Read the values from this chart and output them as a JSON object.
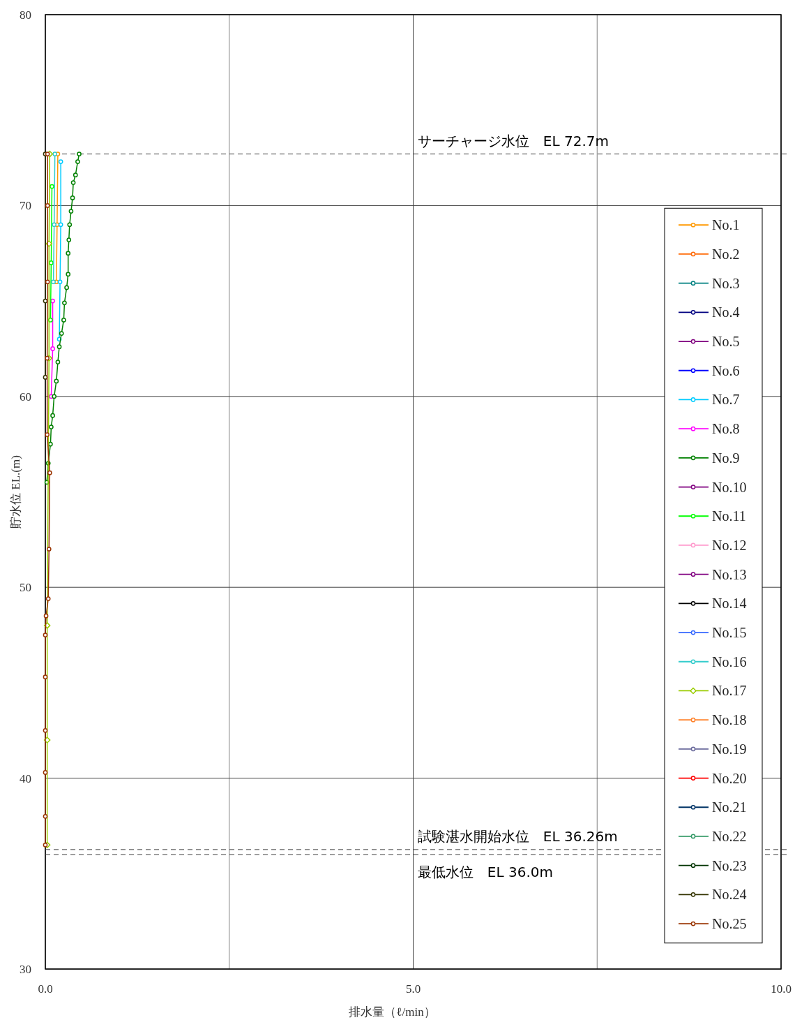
{
  "chart_data": {
    "type": "line",
    "xlabel": "排水量（ℓ/min）",
    "ylabel": "貯水位 EL.(m)",
    "xlim": [
      0,
      10
    ],
    "ylim": [
      30,
      80
    ],
    "xticks": [
      {
        "value": 0,
        "label": "0.0"
      },
      {
        "value": 2.5,
        "label": null
      },
      {
        "value": 5,
        "label": "5.0"
      },
      {
        "value": 7.5,
        "label": null
      },
      {
        "value": 10,
        "label": "10.0"
      }
    ],
    "yticks": [
      30,
      40,
      50,
      60,
      70,
      80
    ],
    "grid": true,
    "legend": "right",
    "marker": "circle",
    "ref_lines": [
      {
        "axis": "y",
        "value": 72.7,
        "label": "サーチャージ水位　EL 72.7m",
        "line_style": "dashed",
        "color": "#404040"
      },
      {
        "axis": "y",
        "value": 36.26,
        "label": "試験湛水開始水位　EL 36.26m",
        "line_style": "dashed",
        "color": "#404040"
      },
      {
        "axis": "y",
        "value": 36.0,
        "label": "最低水位　EL 36.0m",
        "line_style": "dashed",
        "color": "#404040"
      }
    ],
    "series": [
      {
        "name": "No.1",
        "color": "#ff9900",
        "x": [
          0.15,
          0.16,
          0.17
        ],
        "values": [
          66,
          69,
          72.7
        ]
      },
      {
        "name": "No.2",
        "color": "#ff6600",
        "x": [
          null
        ],
        "values": [
          null
        ]
      },
      {
        "name": "No.3",
        "color": "#008080",
        "x": [
          null
        ],
        "values": [
          null
        ]
      },
      {
        "name": "No.4",
        "color": "#000080",
        "x": [
          null
        ],
        "values": [
          null
        ]
      },
      {
        "name": "No.5",
        "color": "#800080",
        "x": [
          null
        ],
        "values": [
          null
        ]
      },
      {
        "name": "No.6",
        "color": "#0000ff",
        "x": [
          null
        ],
        "values": [
          null
        ]
      },
      {
        "name": "No.7",
        "color": "#00ccff",
        "x": [
          0.19,
          0.2,
          0.21,
          0.21
        ],
        "values": [
          63,
          66,
          69,
          72.3
        ]
      },
      {
        "name": "No.8",
        "color": "#ff00ff",
        "x": [
          0.08,
          0.1,
          0.1
        ],
        "values": [
          60,
          62.5,
          65
        ]
      },
      {
        "name": "No.9",
        "color": "#008000",
        "x": [
          0.02,
          0.04,
          0.07,
          0.08,
          0.1,
          0.12,
          0.15,
          0.17,
          0.19,
          0.22,
          0.25,
          0.26,
          0.29,
          0.31,
          0.31,
          0.32,
          0.33,
          0.35,
          0.37,
          0.38,
          0.41,
          0.44,
          0.46
        ],
        "values": [
          55.5,
          56.5,
          57.5,
          58.4,
          59,
          60,
          60.8,
          61.8,
          62.6,
          63.3,
          64,
          64.9,
          65.7,
          66.4,
          67.5,
          68.2,
          69,
          69.7,
          70.4,
          71.2,
          71.6,
          72.3,
          72.7
        ]
      },
      {
        "name": "No.10",
        "color": "#800080",
        "x": [
          null
        ],
        "values": [
          null
        ]
      },
      {
        "name": "No.11",
        "color": "#00ff00",
        "x": [
          0.07,
          0.08,
          0.09
        ],
        "values": [
          64,
          67,
          71
        ]
      },
      {
        "name": "No.12",
        "color": "#ff99cc",
        "x": [
          null
        ],
        "values": [
          null
        ]
      },
      {
        "name": "No.13",
        "color": "#800080",
        "x": [
          null
        ],
        "values": [
          null
        ]
      },
      {
        "name": "No.14",
        "color": "#000000",
        "x": [
          null
        ],
        "values": [
          null
        ]
      },
      {
        "name": "No.15",
        "color": "#3366ff",
        "x": [
          null
        ],
        "values": [
          null
        ]
      },
      {
        "name": "No.16",
        "color": "#33cccc",
        "x": [
          0.11,
          0.12,
          0.13
        ],
        "values": [
          66,
          69,
          72.7
        ]
      },
      {
        "name": "No.17",
        "color": "#99cc00",
        "marker": "diamond",
        "x": [
          0.025,
          0.025,
          0.025,
          0.05,
          0.05,
          0.06
        ],
        "values": [
          36.5,
          42,
          48,
          62,
          68,
          72.7
        ]
      },
      {
        "name": "No.18",
        "color": "#ff7f27",
        "x": [
          null
        ],
        "values": [
          null
        ]
      },
      {
        "name": "No.19",
        "color": "#666699",
        "x": [
          null
        ],
        "values": [
          null
        ]
      },
      {
        "name": "No.20",
        "color": "#ff0000",
        "x": [
          null
        ],
        "values": [
          null
        ]
      },
      {
        "name": "No.21",
        "color": "#003366",
        "x": [
          null
        ],
        "values": [
          null
        ]
      },
      {
        "name": "No.22",
        "color": "#339966",
        "x": [
          null
        ],
        "values": [
          null
        ]
      },
      {
        "name": "No.23",
        "color": "#003300",
        "x": [
          null
        ],
        "values": [
          null
        ]
      },
      {
        "name": "No.24",
        "color": "#333300",
        "x": [
          0.0,
          0.0,
          0.0
        ],
        "values": [
          61,
          65,
          72.7
        ]
      },
      {
        "name": "No.25",
        "color": "#993300",
        "x": [
          0.0,
          0.0,
          0.0,
          0.0,
          0.0,
          0.0,
          0.01,
          0.04,
          0.05,
          0.06,
          0.025,
          0.025,
          0.03,
          0.03,
          0.03
        ],
        "values": [
          36.5,
          38,
          40.3,
          42.5,
          45.3,
          47.5,
          48.5,
          49.4,
          52,
          56,
          58,
          62,
          66,
          70,
          72.7
        ]
      }
    ]
  }
}
